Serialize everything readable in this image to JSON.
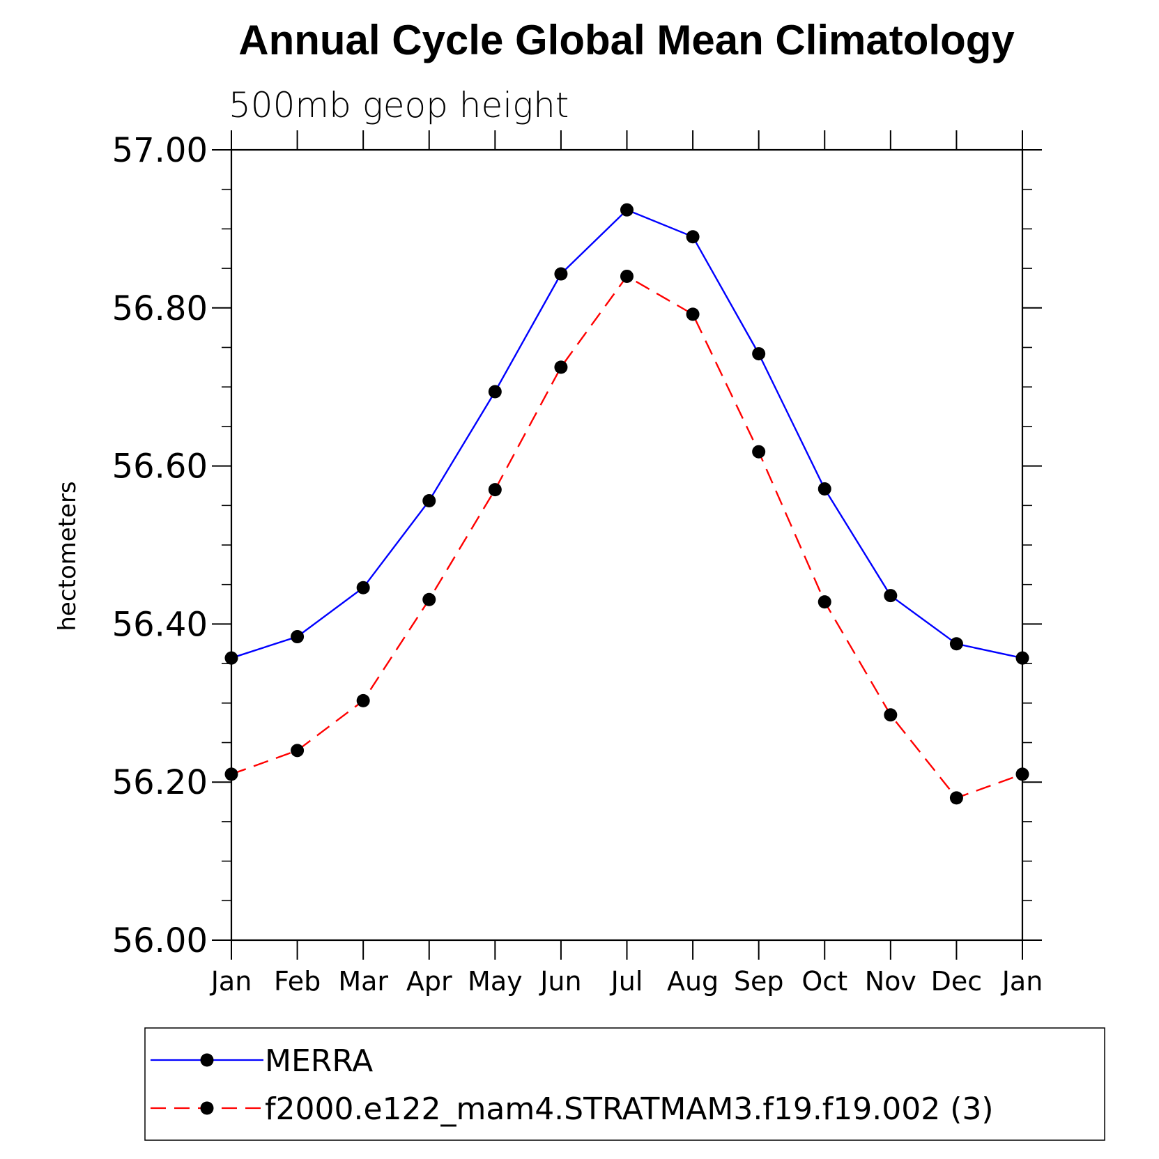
{
  "chart_data": {
    "type": "line",
    "title": "Annual Cycle Global Mean Climatology",
    "subtitle": "500mb geop height",
    "xlabel": "",
    "ylabel": "hectometers",
    "categories": [
      "Jan",
      "Feb",
      "Mar",
      "Apr",
      "May",
      "Jun",
      "Jul",
      "Aug",
      "Sep",
      "Oct",
      "Nov",
      "Dec",
      "Jan"
    ],
    "ylim": [
      56.0,
      57.0
    ],
    "yticks": [
      "56.00",
      "56.20",
      "56.40",
      "56.60",
      "56.80",
      "57.00"
    ],
    "y_minor_step": 0.05,
    "grid": false,
    "legend_position": "bottom",
    "series": [
      {
        "name": "MERRA",
        "color": "#0000ff",
        "line_style": "solid",
        "marker": "filled-circle",
        "values": [
          56.357,
          56.384,
          56.446,
          56.556,
          56.694,
          56.843,
          56.924,
          56.89,
          56.742,
          56.571,
          56.436,
          56.375,
          56.357
        ]
      },
      {
        "name": "f2000.e122_mam4.STRATMAM3.f19.f19.002 (3)",
        "color": "#ff0000",
        "line_style": "dashed",
        "marker": "filled-circle",
        "values": [
          56.21,
          56.24,
          56.303,
          56.431,
          56.57,
          56.725,
          56.84,
          56.792,
          56.618,
          56.428,
          56.285,
          56.18,
          56.21
        ]
      }
    ]
  }
}
